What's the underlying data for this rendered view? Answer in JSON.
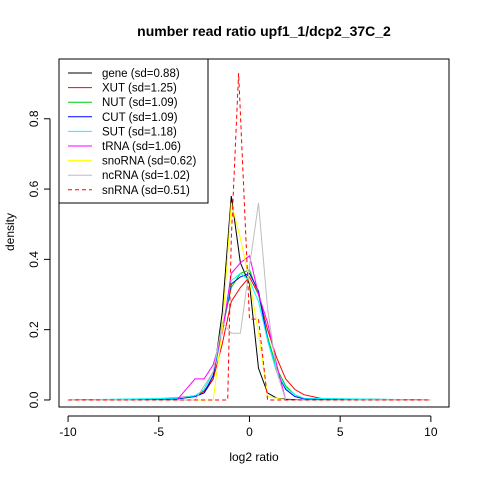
{
  "chart_data": {
    "type": "line",
    "title": "number read ratio upf1_1/dcp2_37C_2",
    "xlabel": "log2 ratio",
    "ylabel": "density",
    "xlim": [
      -10.5,
      11
    ],
    "ylim": [
      -0.02,
      0.97
    ],
    "xticks": [
      -10,
      -5,
      0,
      5,
      10
    ],
    "yticks": [
      0.0,
      0.2,
      0.4,
      0.6,
      0.8
    ],
    "grid": false,
    "legend_position": "top-left",
    "series": [
      {
        "name": "gene (sd=0.88)",
        "color": "#000000",
        "dash": "solid",
        "x": [
          -10,
          -6,
          -4,
          -3,
          -2.5,
          -2,
          -1.5,
          -1,
          -0.5,
          0,
          0.5,
          1,
          1.5,
          2,
          3,
          10
        ],
        "y": [
          0,
          0,
          0.003,
          0.01,
          0.02,
          0.06,
          0.25,
          0.58,
          0.39,
          0.33,
          0.09,
          0.02,
          0.005,
          0.002,
          0,
          0
        ]
      },
      {
        "name": "XUT (sd=1.25)",
        "color": "#ff0000",
        "dash": "solid",
        "x": [
          -10,
          -6,
          -4,
          -3,
          -2.5,
          -2,
          -1.5,
          -1,
          -0.5,
          0,
          0.5,
          1,
          1.5,
          2,
          2.5,
          3,
          4,
          10
        ],
        "y": [
          0,
          0.002,
          0.006,
          0.012,
          0.025,
          0.06,
          0.16,
          0.28,
          0.32,
          0.35,
          0.3,
          0.2,
          0.12,
          0.06,
          0.03,
          0.015,
          0.004,
          0
        ]
      },
      {
        "name": "NUT (sd=1.09)",
        "color": "#00cc00",
        "dash": "solid",
        "x": [
          -10,
          -4,
          -3,
          -2.5,
          -2,
          -1.5,
          -1,
          -0.5,
          0,
          0.5,
          1,
          1.5,
          2,
          2.5,
          3,
          10
        ],
        "y": [
          0,
          0.003,
          0.01,
          0.03,
          0.08,
          0.2,
          0.32,
          0.36,
          0.37,
          0.3,
          0.18,
          0.09,
          0.04,
          0.015,
          0.004,
          0
        ]
      },
      {
        "name": "CUT (sd=1.09)",
        "color": "#0000ff",
        "dash": "solid",
        "x": [
          -10,
          -4,
          -3,
          -2.5,
          -2,
          -1.5,
          -1,
          -0.5,
          0,
          0.5,
          1,
          1.5,
          2,
          2.5,
          3,
          10
        ],
        "y": [
          0,
          0.003,
          0.01,
          0.02,
          0.07,
          0.2,
          0.33,
          0.35,
          0.36,
          0.31,
          0.17,
          0.08,
          0.03,
          0.01,
          0.003,
          0
        ]
      },
      {
        "name": "SUT (sd=1.18)",
        "color": "#00ffff",
        "dash": "solid",
        "x": [
          -10,
          -4,
          -3,
          -2.5,
          -2,
          -1.5,
          -1,
          -0.5,
          0,
          0.5,
          1,
          1.5,
          2,
          2.5,
          3,
          10
        ],
        "y": [
          0,
          0.005,
          0.012,
          0.03,
          0.08,
          0.2,
          0.34,
          0.36,
          0.34,
          0.28,
          0.17,
          0.08,
          0.035,
          0.015,
          0.005,
          0
        ]
      },
      {
        "name": "tRNA (sd=1.06)",
        "color": "#ff00ff",
        "dash": "solid",
        "x": [
          -10,
          -4,
          -3.5,
          -3,
          -2.5,
          -2,
          -1.5,
          -1,
          -0.5,
          0,
          0.5,
          1,
          1.5,
          2,
          10
        ],
        "y": [
          0,
          0,
          0.03,
          0.06,
          0.06,
          0.1,
          0.19,
          0.36,
          0.39,
          0.41,
          0.3,
          0.22,
          0.1,
          0.0,
          0
        ]
      },
      {
        "name": "snoRNA (sd=0.62)",
        "color": "#ffff00",
        "dash": "solid",
        "x": [
          -10,
          -2,
          -1.5,
          -1,
          -0.5,
          0,
          0.5,
          1,
          2,
          10
        ],
        "y": [
          0,
          0,
          0.2,
          0.56,
          0.46,
          0.34,
          0.19,
          0.01,
          0,
          0
        ]
      },
      {
        "name": "ncRNA (sd=1.02)",
        "color": "#bebebe",
        "dash": "solid",
        "x": [
          -10,
          -3,
          -2,
          -1.5,
          -1,
          -0.5,
          0,
          0.5,
          1,
          1.5,
          2,
          10
        ],
        "y": [
          0,
          0,
          0.08,
          0.22,
          0.19,
          0.19,
          0.38,
          0.56,
          0.26,
          0.08,
          0.0,
          0
        ]
      },
      {
        "name": "snRNA (sd=0.51)",
        "color": "#ff0000",
        "dash": "dashed",
        "x": [
          -10,
          -1.5,
          -1.2,
          -1,
          -0.6,
          0,
          0.5,
          1,
          1.5,
          10
        ],
        "y": [
          0,
          0,
          0.0,
          0.46,
          0.93,
          0.23,
          0.23,
          0.0,
          0,
          0
        ]
      }
    ]
  }
}
